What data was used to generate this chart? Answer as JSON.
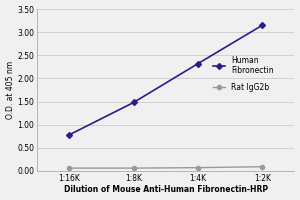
{
  "x_labels": [
    "1:16K",
    "1:8K",
    "1:4K",
    "1:2K"
  ],
  "x_values": [
    1,
    2,
    3,
    4
  ],
  "fibronectin_values": [
    0.78,
    1.48,
    2.32,
    3.15
  ],
  "igg2b_values": [
    0.06,
    0.06,
    0.07,
    0.09
  ],
  "fibronectin_color": "#2d1b8e",
  "igg2b_color": "#999999",
  "fibronectin_label": "Human\nFibronectin",
  "igg2b_label": "Rat IgG2b",
  "ylabel": "O.D. at 405 nm",
  "xlabel": "Dilution of Mouse Anti-Human Fibronectin-HRP",
  "ylim": [
    0.0,
    3.5
  ],
  "yticks": [
    0.0,
    0.5,
    1.0,
    1.5,
    2.0,
    2.5,
    3.0,
    3.5
  ],
  "ytick_labels": [
    "0.00",
    "0.50",
    "1.00",
    "1.50",
    "2.00",
    "2.50",
    "3.00",
    "3.50"
  ],
  "axis_fontsize": 5.5,
  "tick_fontsize": 5.5,
  "legend_fontsize": 5.5,
  "background_color": "#f0f0f0",
  "grid_color": "#cccccc",
  "plot_bg": "#f0f0f0"
}
